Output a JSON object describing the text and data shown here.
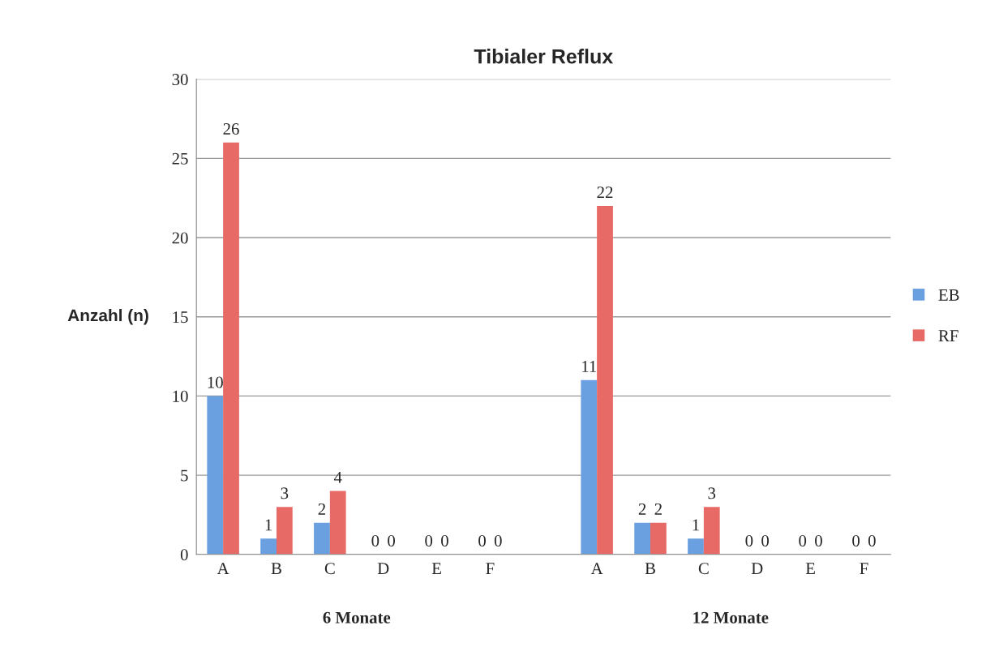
{
  "chart_data": {
    "type": "bar",
    "title": "Tibialer Reflux",
    "ylabel": "Anzahl (n)",
    "categories": [
      "A",
      "B",
      "C",
      "D",
      "E",
      "F",
      null,
      "A",
      "B",
      "C",
      "D",
      "E",
      "F"
    ],
    "series": [
      {
        "name": "EB",
        "color": "#6a9fe0",
        "values": [
          10,
          1,
          2,
          0,
          0,
          0,
          null,
          11,
          2,
          1,
          0,
          0,
          0
        ]
      },
      {
        "name": "RF",
        "color": "#e86a66",
        "values": [
          26,
          3,
          4,
          0,
          0,
          0,
          null,
          22,
          2,
          3,
          0,
          0,
          0
        ]
      }
    ],
    "ylim": [
      0,
      30
    ],
    "yticks": [
      0,
      5,
      10,
      15,
      20,
      25,
      30
    ],
    "grid": "y",
    "legend": "right",
    "data_labels": true,
    "annotations": [
      "6 Monate",
      "12 Monate"
    ]
  }
}
